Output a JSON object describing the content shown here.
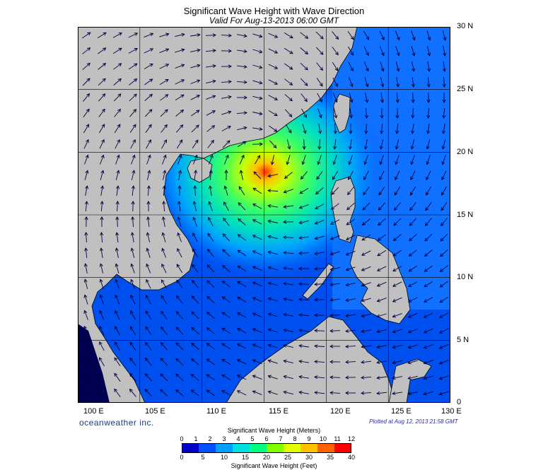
{
  "title": "Significant Wave Height with Wave Direction",
  "subtitle": "Valid For Aug-13-2013 06:00 GMT",
  "map": {
    "region": "South China Sea",
    "lon_range": [
      100,
      130
    ],
    "lat_range": [
      0,
      30
    ],
    "lon_labels": [
      "100 E",
      "105 E",
      "110 E",
      "115 E",
      "120 E",
      "125 E",
      "130 E"
    ],
    "lat_labels": [
      "30 N",
      "25 N",
      "20 N",
      "15 N",
      "10 N",
      "5 N",
      "0"
    ],
    "land_color": "#c0c0c0",
    "peak_center": {
      "lon": 115,
      "lat": 19.3
    },
    "grid": true
  },
  "footer": {
    "brand": "oceanweather inc.",
    "plotted": "Plotted at Aug 12, 2013 21:58 GMT"
  },
  "colorbar": {
    "title_top": "Significant Wave Height (Meters)",
    "title_bottom": "Significant Wave Height (Feet)",
    "meters": [
      "0",
      "1",
      "2",
      "3",
      "4",
      "5",
      "6",
      "7",
      "8",
      "9",
      "10",
      "11",
      "12"
    ],
    "feet": [
      "0",
      "5",
      "10",
      "15",
      "20",
      "25",
      "30",
      "35",
      "40"
    ],
    "colors": [
      "#0000c8",
      "#0050ff",
      "#00a0ff",
      "#00e0e0",
      "#00ff80",
      "#80ff00",
      "#e0ff00",
      "#ffc000",
      "#ff6000",
      "#ff0000"
    ]
  }
}
